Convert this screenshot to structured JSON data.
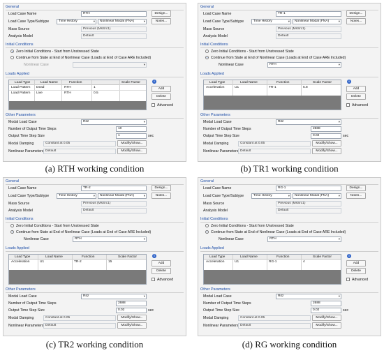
{
  "labels": {
    "general": "General",
    "load_case_name": "Load Case Name",
    "load_case_type": "Load Case Type/Subtype",
    "mass_source": "Mass Source",
    "analysis_model": "Analysis Model",
    "initial_conditions": "Initial Conditions",
    "zero_initial": "Zero Initial Conditions - Start from Unstressed State",
    "continue_state": "Continue from State at End of Nonlinear Case  (Loads at End of Case ARE Included)",
    "nonlinear_case": "Nonlinear Case",
    "loads_applied": "Loads Applied",
    "col_load_type": "Load Type",
    "col_load_name": "Load Name",
    "col_function": "Function",
    "col_scale_factor": "Scale Factor",
    "other_parameters": "Other Parameters",
    "modal_load_case": "Modal Load Case",
    "num_output_steps": "Number of Output Time Steps",
    "output_step_size": "Output Time Step Size",
    "modal_damping": "Modal Damping",
    "nonlinear_params": "Nonlinear Parameters",
    "sec": "sec"
  },
  "buttons": {
    "design": "Design...",
    "notes": "Notes...",
    "add": "Add",
    "delete": "Delete",
    "advanced": "Advanced",
    "modify_show": "Modify/Show..."
  },
  "panels": [
    {
      "caption": "(a) RTH working condition",
      "name": "RTH",
      "type": "Time History",
      "subtype": "Nonlinear Modal (FNA)",
      "mass_source": "Previous  (MsSrc1)",
      "analysis_model": "Default",
      "initial_selected": "zero",
      "nonlinear_case": "",
      "rows": [
        {
          "type": "Load Pattern",
          "name": "Dead",
          "function": "RTH",
          "scale": "1"
        },
        {
          "type": "Load Pattern",
          "name": "Live",
          "function": "RTH",
          "scale": "0.5"
        }
      ],
      "modal_case": "Ritz",
      "num_steps": "10",
      "step_size": "1",
      "damping": "Constant at 0.05",
      "nl_params": "Default"
    },
    {
      "caption": "(b) TR1 working condition",
      "name": "TR-1",
      "type": "Time History",
      "subtype": "Nonlinear Modal (FNA)",
      "mass_source": "Previous  (MsSrc1)",
      "analysis_model": "Default",
      "initial_selected": "continue",
      "nonlinear_case": "RTH",
      "rows": [
        {
          "type": "Acceleration",
          "name": "U1",
          "function": "TR-1",
          "scale": "5.8"
        }
      ],
      "modal_case": "Ritz",
      "num_steps": "2688",
      "step_size": "0.02",
      "damping": "Constant at 0.05",
      "nl_params": "Default"
    },
    {
      "caption": "(c) TR2 working condition",
      "name": "TR-2",
      "type": "Time History",
      "subtype": "Nonlinear Modal (FNA)",
      "mass_source": "Previous  (MsSrc1)",
      "analysis_model": "Default",
      "initial_selected": "continue",
      "nonlinear_case": "RTH",
      "rows": [
        {
          "type": "Acceleration",
          "name": "U1",
          "function": "TR-2",
          "scale": "15"
        }
      ],
      "modal_case": "Ritz",
      "num_steps": "2688",
      "step_size": "0.02",
      "damping": "Constant at 0.05",
      "nl_params": "Default"
    },
    {
      "caption": "(d) RG working condition",
      "name": "RG-1",
      "type": "Time History",
      "subtype": "Nonlinear Modal (FNA)",
      "mass_source": "Previous  (MsSrc1)",
      "analysis_model": "Default",
      "initial_selected": "continue",
      "nonlinear_case": "RTH",
      "rows": [
        {
          "type": "Acceleration",
          "name": "U1",
          "function": "RG-1",
          "scale": "4"
        }
      ],
      "modal_case": "Ritz",
      "num_steps": "2688",
      "step_size": "0.02",
      "damping": "Constant at 0.05",
      "nl_params": "Default"
    }
  ]
}
